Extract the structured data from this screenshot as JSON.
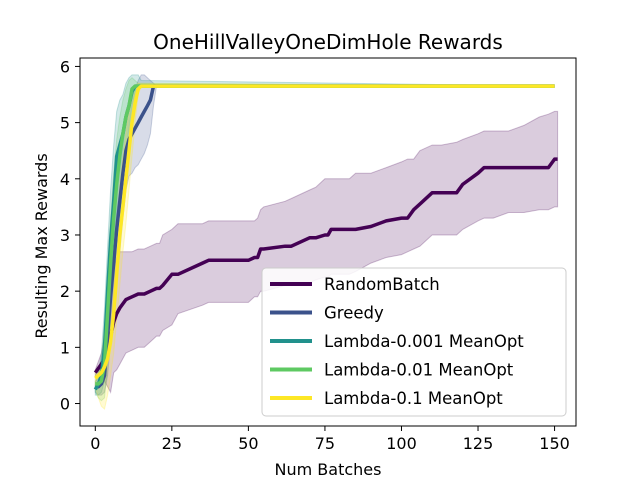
{
  "chart_data": {
    "type": "line",
    "title": "OneHillValleyOneDimHole Rewards",
    "xlabel": "Num Batches",
    "ylabel": "Resulting Max Rewards",
    "xlim": [
      -5,
      157
    ],
    "ylim": [
      -0.4,
      6.15
    ],
    "xticks": [
      0,
      25,
      50,
      75,
      100,
      125,
      150
    ],
    "yticks": [
      0,
      1,
      2,
      3,
      4,
      5,
      6
    ],
    "legend_position": "lower-right",
    "series": [
      {
        "name": "RandomBatch",
        "color": "#440154",
        "x": [
          0,
          2,
          4,
          5,
          6,
          7,
          8,
          10,
          12,
          14,
          16,
          18,
          20,
          21,
          22,
          25,
          27,
          35,
          37,
          50,
          52,
          53,
          54,
          55,
          62,
          64,
          70,
          72,
          75,
          76,
          77,
          83,
          85,
          90,
          95,
          100,
          102,
          104,
          106,
          110,
          113,
          118,
          120,
          125,
          127,
          130,
          135,
          140,
          145,
          148,
          150,
          151
        ],
        "values": [
          0.55,
          0.7,
          0.9,
          1.2,
          1.45,
          1.6,
          1.7,
          1.85,
          1.9,
          1.95,
          1.95,
          2.0,
          2.05,
          2.05,
          2.1,
          2.3,
          2.3,
          2.5,
          2.55,
          2.55,
          2.6,
          2.6,
          2.75,
          2.75,
          2.8,
          2.8,
          2.95,
          2.95,
          3.0,
          3.0,
          3.1,
          3.1,
          3.1,
          3.15,
          3.25,
          3.3,
          3.3,
          3.45,
          3.55,
          3.75,
          3.75,
          3.75,
          3.9,
          4.1,
          4.2,
          4.2,
          4.2,
          4.2,
          4.2,
          4.2,
          4.35,
          4.35
        ],
        "band_upper": [
          0.6,
          0.9,
          1.5,
          2.2,
          2.4,
          2.6,
          2.7,
          2.7,
          2.7,
          2.75,
          2.75,
          2.8,
          2.85,
          2.85,
          3.0,
          3.1,
          3.2,
          3.2,
          3.25,
          3.25,
          3.25,
          3.3,
          3.45,
          3.5,
          3.6,
          3.65,
          3.8,
          3.85,
          4.0,
          4.0,
          4.0,
          4.0,
          4.1,
          4.1,
          4.2,
          4.3,
          4.35,
          4.35,
          4.5,
          4.6,
          4.6,
          4.65,
          4.7,
          4.8,
          4.85,
          4.85,
          4.85,
          4.95,
          5.1,
          5.15,
          5.2,
          5.2
        ],
        "band_lower": [
          0.5,
          0.5,
          0.3,
          0.2,
          0.55,
          0.6,
          0.7,
          0.9,
          0.95,
          1.0,
          1.0,
          1.1,
          1.2,
          1.2,
          1.3,
          1.4,
          1.6,
          1.75,
          1.8,
          1.8,
          1.9,
          1.9,
          2.0,
          2.0,
          2.1,
          2.1,
          2.15,
          2.2,
          2.25,
          2.25,
          2.3,
          2.3,
          2.35,
          2.5,
          2.6,
          2.65,
          2.7,
          2.75,
          2.8,
          3.0,
          3.0,
          3.0,
          3.1,
          3.25,
          3.3,
          3.3,
          3.4,
          3.4,
          3.45,
          3.45,
          3.5,
          3.5
        ]
      },
      {
        "name": "Greedy",
        "color": "#3b528b",
        "x": [
          0,
          1,
          2,
          3,
          4,
          5,
          6,
          7,
          8,
          9,
          10,
          11,
          12,
          13,
          14,
          15,
          16,
          17,
          18,
          19,
          20,
          150
        ],
        "values": [
          0.3,
          0.3,
          0.35,
          0.5,
          1.2,
          1.9,
          2.5,
          3.1,
          3.6,
          4.1,
          4.5,
          4.7,
          4.8,
          4.9,
          5.0,
          5.1,
          5.2,
          5.3,
          5.4,
          5.65,
          5.65,
          5.65
        ],
        "band_upper": [
          0.4,
          0.45,
          0.55,
          0.9,
          1.9,
          2.7,
          3.4,
          4.0,
          4.5,
          4.9,
          5.2,
          5.35,
          5.5,
          5.6,
          5.75,
          5.85,
          5.85,
          5.8,
          5.75,
          5.7,
          5.65,
          5.65
        ],
        "band_lower": [
          0.2,
          0.15,
          0.15,
          0.2,
          0.5,
          1.1,
          1.6,
          2.2,
          2.7,
          3.3,
          3.8,
          4.05,
          4.1,
          4.2,
          4.25,
          4.35,
          4.45,
          4.6,
          4.8,
          5.3,
          5.65,
          5.65
        ]
      },
      {
        "name": "Lambda-0.001 MeanOpt",
        "color": "#21918c",
        "x": [
          0,
          1,
          2,
          3,
          4,
          5,
          6,
          7,
          8,
          9,
          10,
          11,
          12,
          13,
          14,
          15,
          150
        ],
        "values": [
          0.25,
          0.35,
          0.5,
          1.0,
          2.0,
          2.9,
          3.6,
          4.4,
          4.6,
          4.8,
          5.1,
          5.3,
          5.55,
          5.65,
          5.65,
          5.65,
          5.65
        ],
        "band_upper": [
          0.35,
          0.55,
          0.9,
          1.7,
          2.8,
          3.8,
          4.6,
          5.2,
          5.4,
          5.5,
          5.7,
          5.8,
          5.85,
          5.85,
          5.85,
          5.75,
          5.65
        ],
        "band_lower": [
          0.15,
          0.15,
          0.2,
          0.4,
          1.1,
          1.9,
          2.6,
          3.4,
          3.8,
          4.1,
          4.4,
          4.7,
          5.1,
          5.45,
          5.55,
          5.65,
          5.65
        ]
      },
      {
        "name": "Lambda-0.01 MeanOpt",
        "color": "#5ec962",
        "x": [
          0,
          1,
          2,
          3,
          4,
          5,
          6,
          7,
          8,
          9,
          10,
          11,
          12,
          13,
          14,
          150
        ],
        "values": [
          0.35,
          0.35,
          0.4,
          0.7,
          1.6,
          2.5,
          3.3,
          3.9,
          4.4,
          4.8,
          5.1,
          5.3,
          5.6,
          5.65,
          5.65,
          5.65
        ],
        "band_upper": [
          0.5,
          0.6,
          0.8,
          1.4,
          2.4,
          3.3,
          4.1,
          4.7,
          5.1,
          5.4,
          5.6,
          5.75,
          5.8,
          5.75,
          5.7,
          5.65
        ],
        "band_lower": [
          0.2,
          0.1,
          0.05,
          0.1,
          0.7,
          1.6,
          2.4,
          3.0,
          3.6,
          4.1,
          4.5,
          4.9,
          5.3,
          5.55,
          5.65,
          5.65
        ]
      },
      {
        "name": "Lambda-0.1 MeanOpt",
        "color": "#fde725",
        "x": [
          0,
          1,
          2,
          3,
          4,
          5,
          6,
          7,
          8,
          9,
          10,
          11,
          12,
          13,
          14,
          15,
          150
        ],
        "values": [
          0.45,
          0.5,
          0.55,
          0.65,
          0.8,
          1.1,
          1.6,
          2.3,
          3.0,
          3.5,
          4.0,
          4.5,
          5.0,
          5.35,
          5.6,
          5.65,
          5.65
        ],
        "band_upper": [
          0.55,
          0.6,
          0.75,
          1.0,
          1.3,
          1.8,
          2.5,
          3.2,
          3.9,
          4.4,
          4.8,
          5.2,
          5.5,
          5.65,
          5.7,
          5.7,
          5.65
        ],
        "band_lower": [
          0.3,
          0.1,
          -0.05,
          -0.1,
          0.15,
          0.5,
          0.9,
          1.5,
          2.1,
          2.7,
          3.2,
          3.8,
          4.4,
          5.0,
          5.5,
          5.65,
          5.65
        ]
      }
    ]
  }
}
